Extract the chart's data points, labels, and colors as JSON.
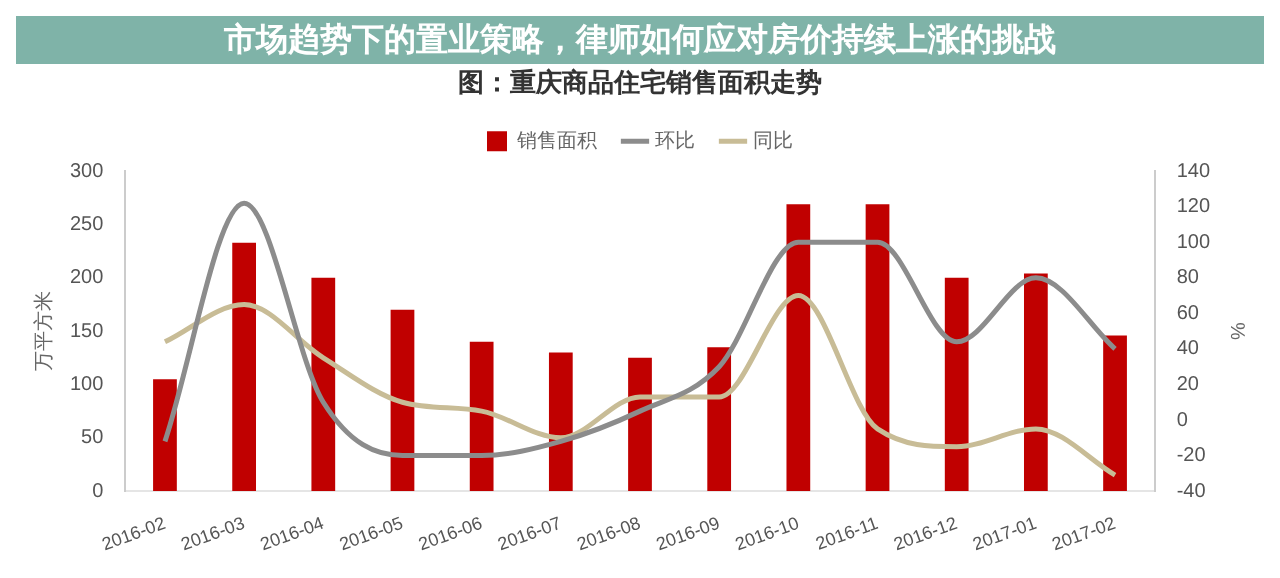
{
  "chart_data": {
    "type": "bar",
    "title": "图：重庆商品住宅销售面积走势",
    "annotations": [
      "市场趋势下的置业策略，律师如何应对房价持续上涨的挑战"
    ],
    "categories": [
      "2016-02",
      "2016-03",
      "2016-04",
      "2016-05",
      "2016-06",
      "2016-07",
      "2016-08",
      "2016-09",
      "2016-10",
      "2016-11",
      "2016-12",
      "2017-01",
      "2017-02"
    ],
    "series": [
      {
        "name": "销售面积",
        "color": "#c00000",
        "values": [
          105,
          233,
          200,
          170,
          140,
          130,
          125,
          135,
          269,
          269,
          200,
          204,
          146
        ]
      },
      {
        "name": "环比",
        "type": "line",
        "axis": "y2",
        "color": "#8c8c8c",
        "values": [
          -12,
          122,
          10,
          -20,
          -20,
          -12,
          5,
          30,
          100,
          100,
          44,
          80,
          40
        ]
      },
      {
        "name": "同比",
        "type": "line",
        "axis": "y2",
        "color": "#c8bc96",
        "values": [
          44,
          65,
          35,
          10,
          5,
          -10,
          13,
          13,
          70,
          -5,
          -15,
          -5,
          -31
        ]
      }
    ],
    "ylabel": "万平方米",
    "y2label": "%",
    "ylim": [
      0,
      300
    ],
    "yticks": [
      0,
      50,
      100,
      150,
      200,
      250,
      300
    ],
    "y2lim": [
      -40,
      140
    ],
    "y2ticks": [
      -40,
      -20,
      0,
      20,
      40,
      60,
      80,
      100,
      120,
      140
    ],
    "legend": "top",
    "grid": false,
    "marker": "none"
  }
}
